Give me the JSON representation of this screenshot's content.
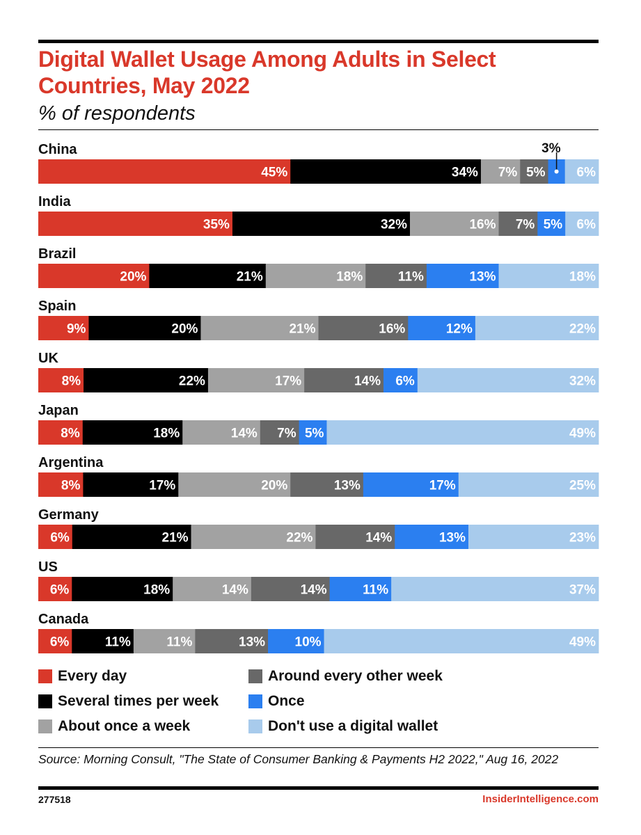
{
  "header": {
    "title": "Digital Wallet Usage Among Adults in Select Countries, May 2022",
    "subtitle": "% of respondents"
  },
  "chart_data": {
    "type": "bar",
    "orientation": "horizontal",
    "stacked": true,
    "title": "Digital Wallet Usage Among Adults in Select Countries, May 2022",
    "subtitle": "% of respondents",
    "categories": [
      "China",
      "India",
      "Brazil",
      "Spain",
      "UK",
      "Japan",
      "Argentina",
      "Germany",
      "US",
      "Canada"
    ],
    "series": [
      {
        "name": "Every day",
        "color": "#d9382a",
        "values": [
          45,
          35,
          20,
          9,
          8,
          8,
          8,
          6,
          6,
          6
        ]
      },
      {
        "name": "Several times per week",
        "color": "#000000",
        "values": [
          34,
          32,
          21,
          20,
          22,
          18,
          17,
          21,
          18,
          11
        ]
      },
      {
        "name": "About once a week",
        "color": "#a2a2a2",
        "values": [
          7,
          16,
          18,
          21,
          17,
          14,
          20,
          22,
          14,
          11
        ]
      },
      {
        "name": "Around every other week",
        "color": "#686868",
        "values": [
          5,
          7,
          11,
          16,
          14,
          7,
          13,
          14,
          14,
          13
        ]
      },
      {
        "name": "Once",
        "color": "#2b7ff0",
        "values": [
          3,
          5,
          13,
          12,
          6,
          5,
          17,
          13,
          11,
          10
        ]
      },
      {
        "name": "Don't use a digital wallet",
        "color": "#a8cbec",
        "values": [
          6,
          6,
          18,
          22,
          32,
          49,
          25,
          23,
          37,
          49
        ]
      }
    ],
    "annotations": [
      {
        "category": "China",
        "series": "Once",
        "text": "3%"
      }
    ],
    "xlim": [
      0,
      100
    ],
    "legend_position": "bottom"
  },
  "footer": {
    "source": "Source: Morning Consult, \"The State of Consumer Banking & Payments H2 2022,\" Aug 16, 2022",
    "chart_id": "277518",
    "brand": "InsiderIntelligence.com"
  }
}
